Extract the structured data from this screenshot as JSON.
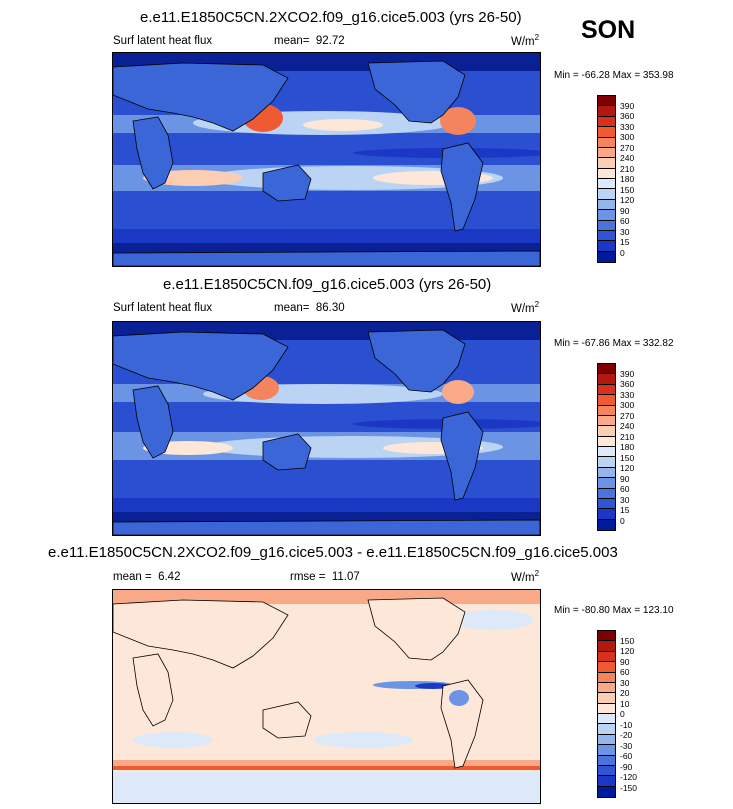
{
  "season": "SON",
  "panels": [
    {
      "title": "e.e11.E1850C5CN.2XCO2.f09_g16.cice5.003 (yrs 26-50)",
      "variable": "Surf latent heat flux",
      "mean_label": "mean=",
      "mean_value": "92.72",
      "units_base": "W/m",
      "units_exp": "2",
      "minmax": "Min = -66.28 Max = 353.98",
      "scale": "abs"
    },
    {
      "title": "e.e11.E1850C5CN.f09_g16.cice5.003 (yrs 26-50)",
      "variable": "Surf latent heat flux",
      "mean_label": "mean=",
      "mean_value": "86.30",
      "units_base": "W/m",
      "units_exp": "2",
      "minmax": "Min = -67.86 Max = 332.82",
      "scale": "abs"
    },
    {
      "title": "e.e11.E1850C5CN.2XCO2.f09_g16.cice5.003 - e.e11.E1850C5CN.f09_g16.cice5.003",
      "mean_label": "mean =",
      "mean_value": "6.42",
      "rmse_label": "rmse =",
      "rmse_value": "11.07",
      "units_base": "W/m",
      "units_exp": "2",
      "minmax": "Min = -80.80 Max = 123.10",
      "scale": "diff"
    }
  ],
  "colorbars": {
    "abs": {
      "labels": [
        "390",
        "360",
        "330",
        "300",
        "270",
        "240",
        "210",
        "180",
        "150",
        "120",
        "90",
        "60",
        "30",
        "15",
        "0"
      ],
      "colors": [
        "#7f0000",
        "#b2180e",
        "#d7301f",
        "#ef5a32",
        "#f4845e",
        "#f9a987",
        "#fbcdb2",
        "#fde7d8",
        "#dde9f8",
        "#bcd4f3",
        "#93b5ec",
        "#6c94e4",
        "#4a74dc",
        "#2f55d4",
        "#1b38c4",
        "#001a9c"
      ]
    },
    "diff": {
      "labels": [
        "150",
        "120",
        "90",
        "60",
        "30",
        "20",
        "10",
        "0",
        "-10",
        "-20",
        "-30",
        "-60",
        "-90",
        "-120",
        "-150"
      ],
      "colors": [
        "#7f0000",
        "#b2180e",
        "#d7301f",
        "#ef5a32",
        "#f4845e",
        "#f9a987",
        "#fbcdb2",
        "#fde7d8",
        "#dde9f8",
        "#bcd4f3",
        "#93b5ec",
        "#6c94e4",
        "#4a74dc",
        "#2f55d4",
        "#1b38c4",
        "#001a9c"
      ]
    }
  }
}
